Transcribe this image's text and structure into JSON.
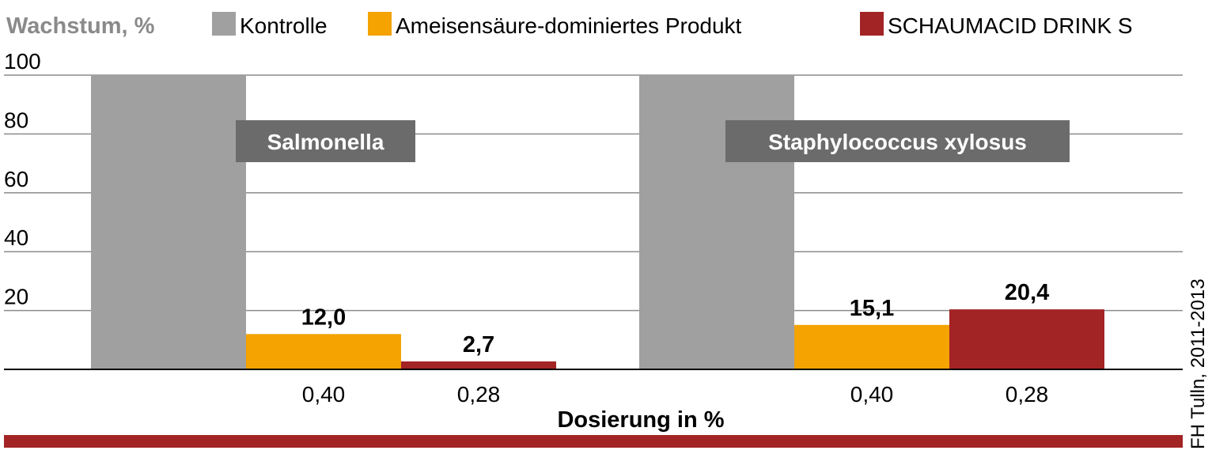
{
  "chart_data": {
    "type": "bar",
    "y_title": "Wachstum, %",
    "x_title": "Dosierung in %",
    "source": "FH Tulln, 2011-2013",
    "categories": [
      "Salmonella",
      "Staphylococcus xylosus"
    ],
    "series": [
      {
        "name": "Kontrolle",
        "color": "#a0a0a0",
        "values": [
          100,
          100
        ]
      },
      {
        "name": "Ameisensäure-dominiertes Produkt",
        "color": "#f4a300",
        "dosage": "0,40",
        "values": [
          12.0,
          15.1
        ],
        "value_labels": [
          "12,0",
          "15,1"
        ]
      },
      {
        "name": "SCHAUMACID DRINK S",
        "color": "#a32424",
        "dosage": "0,28",
        "values": [
          2.7,
          20.4
        ],
        "value_labels": [
          "2,7",
          "20,4"
        ]
      }
    ],
    "ylim": [
      0,
      100
    ],
    "yticks": [
      20,
      40,
      60,
      80,
      100
    ],
    "grid": true
  }
}
